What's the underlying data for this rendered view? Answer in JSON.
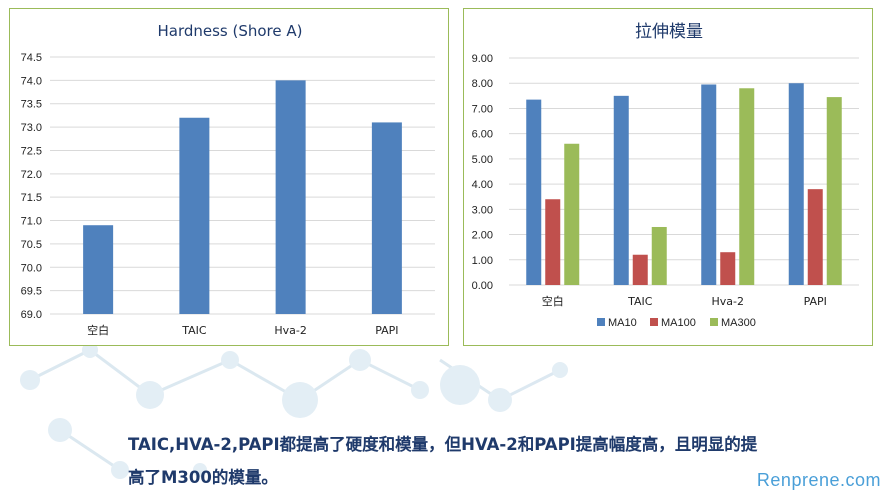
{
  "chart_data": [
    {
      "type": "bar",
      "title": "Hardness (Shore A)",
      "categories": [
        "空白",
        "TAIC",
        "Hva-2",
        "PAPI"
      ],
      "values": [
        70.9,
        73.2,
        74.0,
        73.1
      ],
      "ylim": [
        69.0,
        74.5
      ],
      "yticks": [
        "69.0",
        "69.5",
        "70.0",
        "70.5",
        "71.0",
        "71.5",
        "72.0",
        "72.5",
        "73.0",
        "73.5",
        "74.0",
        "74.5"
      ],
      "grid": true,
      "colors": [
        "#4f81bd"
      ]
    },
    {
      "type": "bar",
      "title": "拉伸模量",
      "categories": [
        "空白",
        "TAIC",
        "Hva-2",
        "PAPI"
      ],
      "series": [
        {
          "name": "MA10",
          "values": [
            7.35,
            7.5,
            7.95,
            8.0
          ]
        },
        {
          "name": "MA100",
          "values": [
            3.4,
            1.2,
            1.3,
            3.8
          ]
        },
        {
          "name": "MA300",
          "values": [
            5.6,
            2.3,
            7.8,
            7.45
          ]
        }
      ],
      "ylim": [
        0,
        9
      ],
      "yticks": [
        "0.00",
        "1.00",
        "2.00",
        "3.00",
        "4.00",
        "5.00",
        "6.00",
        "7.00",
        "8.00",
        "9.00"
      ],
      "grid": true,
      "legend": "bottom",
      "colors": [
        "#4f81bd",
        "#c0504d",
        "#9bbb59"
      ]
    }
  ],
  "caption": {
    "line1": "TAIC,HVA-2,PAPI都提高了硬度和模量，但HVA-2和PAPI提高幅度高，且明显的提",
    "line2": "高了M300的模量。"
  },
  "brand": "Renprene.com"
}
